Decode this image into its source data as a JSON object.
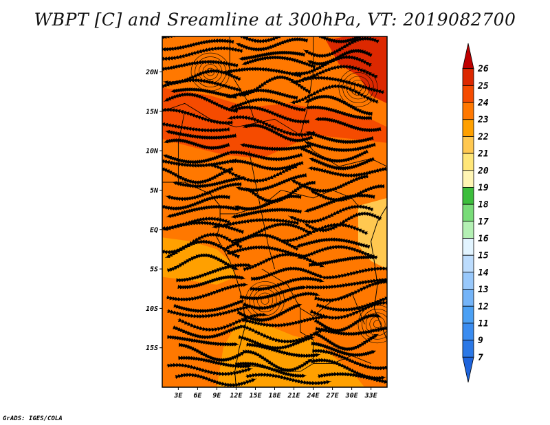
{
  "chart_data": {
    "type": "heatmap",
    "title": "WBPT [C] and Sreamline at 300hPa, VT: 2019082700",
    "variable": "Wet-bulb potential temperature (C) with streamlines, 300hPa",
    "valid_time": "2019082700",
    "x_axis": {
      "tick_labels": [
        "3E",
        "6E",
        "9E",
        "12E",
        "15E",
        "18E",
        "21E",
        "24E",
        "27E",
        "30E",
        "33E"
      ],
      "tick_values": [
        3,
        6,
        9,
        12,
        15,
        18,
        21,
        24,
        27,
        30,
        33
      ],
      "range": [
        0.5,
        35.5
      ]
    },
    "y_axis": {
      "tick_labels": [
        "20N",
        "15N",
        "10N",
        "5N",
        "EQ",
        "5S",
        "10S",
        "15S"
      ],
      "tick_values": [
        20,
        15,
        10,
        5,
        0,
        -5,
        -10,
        -15
      ],
      "range": [
        -20,
        24.5
      ]
    },
    "colorbar": {
      "levels": [
        7,
        9,
        11,
        12,
        13,
        14,
        15,
        16,
        17,
        18,
        19,
        20,
        21,
        22,
        23,
        24,
        25,
        26
      ],
      "colors": [
        "#1e64dc",
        "#2b78e6",
        "#3a8cf0",
        "#4ba0f4",
        "#74b4f8",
        "#98c8fb",
        "#bcdcfd",
        "#e2f4ff",
        "#b4f0b4",
        "#78dc78",
        "#3cbe3c",
        "#fff5b4",
        "#ffe678",
        "#ffc850",
        "#ffa000",
        "#ff7800",
        "#f54b00",
        "#dc2800",
        "#be0000"
      ]
    },
    "fields": [
      {
        "region": "background",
        "value_range": "22-23",
        "color": "#ff7800"
      },
      {
        "region": "northern band 10N-15N",
        "value_range": "23-24",
        "color": "#f54b00"
      },
      {
        "region": "north-east corner",
        "value_range": "24-25",
        "color": "#dc2800"
      },
      {
        "region": "west coast 0-7S",
        "value_range": "21-22",
        "color": "#ffa000"
      },
      {
        "region": "south-central 10S-20S",
        "value_range": "21-22",
        "color": "#ffa000"
      },
      {
        "region": "east coast 0-5S",
        "value_range": "20-21",
        "color": "#ffc850"
      }
    ],
    "annotations": {
      "streamlines": true,
      "coastlines": true,
      "country_borders": true
    }
  },
  "footer": "GrADS: IGES/COLA"
}
